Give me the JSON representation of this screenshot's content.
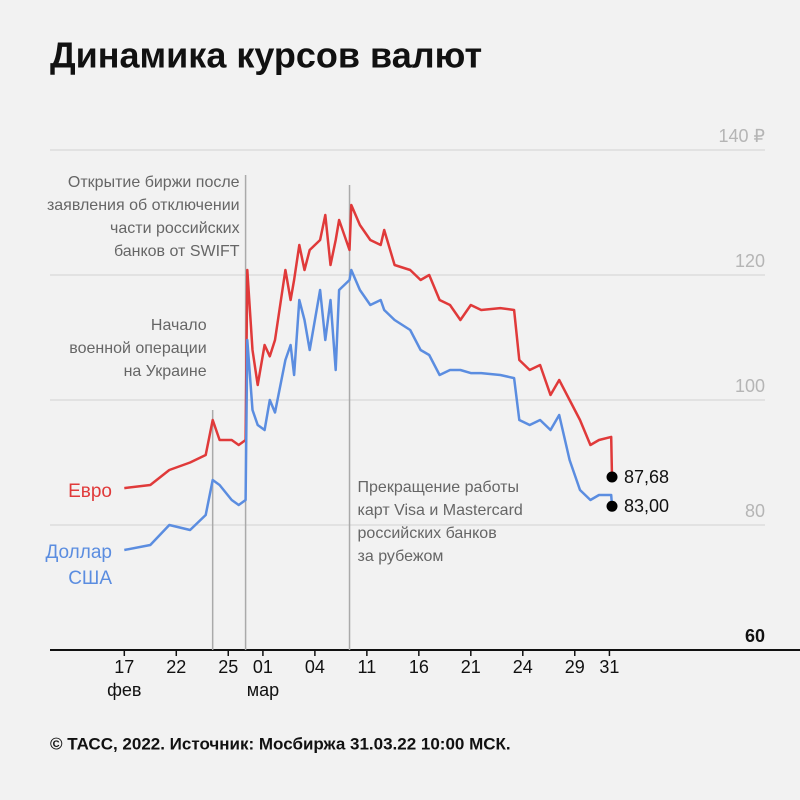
{
  "chart_data": {
    "type": "line",
    "title": "Динамика курсов валют",
    "footer": "© ТАСС, 2022. Источник: Мосбиржа 31.03.22 10:00 МСК.",
    "x": [
      0,
      1.5,
      2.6,
      3.8,
      4.7,
      5.1,
      5.5,
      6.2,
      6.6,
      7.0,
      7.1,
      7.4,
      7.7,
      8.1,
      8.4,
      8.7,
      9.3,
      9.6,
      9.8,
      10.1,
      10.4,
      10.7,
      11.3,
      11.6,
      11.9,
      12.2,
      12.4,
      13.0,
      13.1,
      13.6,
      14.2,
      14.8,
      15.0,
      15.6,
      16.5,
      17.1,
      17.6,
      18.2,
      18.8,
      19.4,
      20.0,
      20.6,
      21.7,
      22.5,
      22.8,
      23.4,
      24.0,
      24.6,
      25.1,
      25.7,
      26.3,
      26.9,
      27.4,
      28.1,
      28.15
    ],
    "series": [
      {
        "name": "Евро",
        "color": "#e03a3a",
        "end_label": "87,68",
        "values": [
          85.9,
          86.4,
          88.8,
          90,
          91.2,
          96.8,
          93.6,
          93.6,
          92.8,
          93.6,
          120.8,
          108,
          102.4,
          108.8,
          107,
          109.6,
          120.8,
          116,
          119.2,
          124.8,
          120.8,
          124,
          125.6,
          129.6,
          121.6,
          125.6,
          128.8,
          124,
          131.2,
          128,
          125.6,
          124.8,
          127.2,
          121.6,
          120.8,
          119.2,
          120,
          116,
          115.2,
          112.8,
          115.2,
          114.4,
          114.7,
          114.4,
          106.4,
          104.8,
          105.6,
          100.8,
          103.2,
          100,
          96.8,
          92.8,
          93.6,
          94.1,
          87.68
        ]
      },
      {
        "name": "Доллар США",
        "color": "#5b8de0",
        "end_label": "83,00",
        "values": [
          76,
          76.8,
          80,
          79.2,
          81.6,
          87.2,
          86.4,
          84,
          83.2,
          84,
          109.6,
          98.4,
          96,
          95.2,
          100,
          98,
          106.4,
          108.8,
          104,
          116,
          112.8,
          108,
          117.6,
          109.6,
          116,
          104.8,
          117.6,
          119.2,
          120.8,
          117.6,
          115.2,
          116,
          114.4,
          112.8,
          111.2,
          108,
          107.2,
          104,
          104.8,
          104.8,
          104.3,
          104.3,
          104,
          103.5,
          96.8,
          96,
          96.8,
          95.2,
          97.6,
          90.4,
          85.6,
          84,
          84.8,
          84.8,
          83
        ]
      }
    ],
    "xlim": [
      -4,
      39
    ],
    "xticks": [
      {
        "value": 0,
        "label": "17"
      },
      {
        "value": 3,
        "label": "22"
      },
      {
        "value": 6,
        "label": "25"
      },
      {
        "value": 8,
        "label": "01"
      },
      {
        "value": 11,
        "label": "04"
      },
      {
        "value": 14,
        "label": "11"
      },
      {
        "value": 17,
        "label": "16"
      },
      {
        "value": 20,
        "label": "21"
      },
      {
        "value": 23,
        "label": "24"
      },
      {
        "value": 26,
        "label": "29"
      },
      {
        "value": 28,
        "label": "31"
      }
    ],
    "month_labels": [
      {
        "value": 0,
        "label": "фев"
      },
      {
        "value": 8,
        "label": "мар"
      }
    ],
    "ylim": [
      60,
      140
    ],
    "yticks": [
      60,
      80,
      100,
      120,
      {
        "value": 140,
        "label": "140 ₽"
      }
    ],
    "grid": true,
    "annotations": [
      {
        "x": 5.1,
        "text": [
          "Начало",
          "военной операции",
          "на Украине"
        ]
      },
      {
        "x": 7.0,
        "text": [
          "Открытие биржи после",
          "заявления об отключении",
          "части российских",
          "банков от SWIFT"
        ]
      },
      {
        "x": 13.0,
        "text": [
          "Прекращение работы",
          "карт Visa и Mastercard",
          "российских банков",
          "за рубежом"
        ]
      }
    ]
  }
}
